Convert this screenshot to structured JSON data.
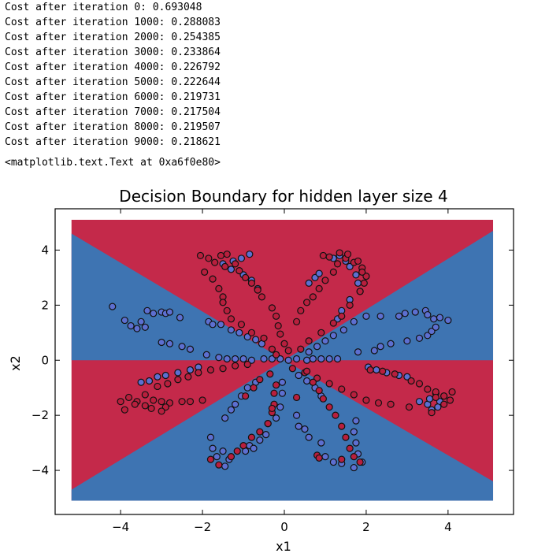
{
  "log_lines": [
    "Cost after iteration 0: 0.693048",
    "Cost after iteration 1000: 0.288083",
    "Cost after iteration 2000: 0.254385",
    "Cost after iteration 3000: 0.233864",
    "Cost after iteration 4000: 0.226792",
    "Cost after iteration 5000: 0.222644",
    "Cost after iteration 6000: 0.219731",
    "Cost after iteration 7000: 0.217504",
    "Cost after iteration 8000: 0.219507",
    "Cost after iteration 9000: 0.218621"
  ],
  "output_line": "<matplotlib.text.Text at 0xa6f0e80>",
  "chart_data": {
    "type": "scatter",
    "title": "Decision Boundary for hidden layer size 4",
    "xlabel": "x1",
    "ylabel": "x2",
    "xlim": [
      -5.6,
      5.6
    ],
    "ylim": [
      -5.6,
      5.5
    ],
    "xticks": [
      -4,
      -2,
      0,
      2,
      4
    ],
    "yticks": [
      -4,
      -2,
      0,
      2,
      4
    ],
    "x_tick_labels": [
      "−4",
      "−2",
      "0",
      "2",
      "4"
    ],
    "y_tick_labels": [
      "−4",
      "−2",
      "0",
      "2",
      "4"
    ],
    "grid": false,
    "background_regions": {
      "x_range": [
        -5.2,
        5.1
      ],
      "y_range": [
        -5.1,
        5.1
      ],
      "colors": {
        "red": "#c4294a",
        "blue": "#3e74b2"
      }
    },
    "colors": {
      "red_point": "#b81f3d",
      "blue_point": "#5d6fd0",
      "point_edge": "#111111"
    },
    "series": [
      {
        "color": "blue_point",
        "points": [
          [
            -4.2,
            1.95
          ],
          [
            -3.9,
            1.45
          ],
          [
            -3.75,
            1.25
          ],
          [
            -3.6,
            1.15
          ],
          [
            -3.5,
            1.4
          ],
          [
            -3.4,
            1.2
          ],
          [
            -3.35,
            1.8
          ],
          [
            -3.2,
            1.7
          ],
          [
            -3.0,
            1.75
          ],
          [
            -2.9,
            1.7
          ],
          [
            -2.8,
            1.75
          ],
          [
            -2.55,
            1.55
          ],
          [
            -3.0,
            0.65
          ],
          [
            -2.8,
            0.6
          ],
          [
            -2.5,
            0.5
          ],
          [
            -2.3,
            0.4
          ],
          [
            -1.85,
            1.4
          ],
          [
            -1.75,
            1.3
          ],
          [
            -1.55,
            1.3
          ],
          [
            -1.3,
            1.1
          ],
          [
            -1.1,
            1.0
          ],
          [
            -0.9,
            0.85
          ],
          [
            -0.7,
            0.75
          ],
          [
            -0.55,
            0.6
          ],
          [
            -1.9,
            0.2
          ],
          [
            -1.6,
            0.1
          ],
          [
            -1.4,
            0.05
          ],
          [
            -1.2,
            0.05
          ],
          [
            -1.0,
            0.05
          ],
          [
            -0.8,
            0.0
          ],
          [
            -0.5,
            0.05
          ],
          [
            -0.3,
            0.05
          ],
          [
            -0.1,
            0.05
          ],
          [
            0.1,
            0.0
          ],
          [
            0.3,
            0.05
          ],
          [
            0.55,
            0.0
          ],
          [
            0.7,
            0.05
          ],
          [
            0.9,
            0.05
          ],
          [
            1.1,
            0.05
          ],
          [
            1.3,
            0.05
          ],
          [
            0.6,
            0.3
          ],
          [
            0.8,
            0.5
          ],
          [
            1.0,
            0.7
          ],
          [
            1.2,
            0.9
          ],
          [
            1.45,
            1.1
          ],
          [
            1.7,
            1.4
          ],
          [
            2.0,
            1.6
          ],
          [
            2.35,
            1.6
          ],
          [
            1.8,
            0.3
          ],
          [
            2.2,
            0.35
          ],
          [
            2.35,
            0.5
          ],
          [
            2.6,
            0.6
          ],
          [
            2.8,
            1.6
          ],
          [
            2.95,
            1.7
          ],
          [
            3.2,
            1.75
          ],
          [
            3.45,
            1.8
          ],
          [
            3.5,
            1.65
          ],
          [
            3.65,
            1.5
          ],
          [
            3.8,
            1.55
          ],
          [
            4.0,
            1.45
          ],
          [
            3.0,
            0.7
          ],
          [
            3.3,
            0.8
          ],
          [
            3.5,
            0.9
          ],
          [
            3.6,
            1.05
          ],
          [
            3.7,
            1.2
          ],
          [
            -0.95,
            -3.3
          ],
          [
            -0.85,
            -3.1
          ],
          [
            -0.75,
            -3.2
          ],
          [
            -0.6,
            -2.9
          ],
          [
            -0.45,
            -2.7
          ],
          [
            -0.4,
            -2.3
          ],
          [
            -0.2,
            -2.1
          ],
          [
            -0.1,
            -1.7
          ],
          [
            -0.05,
            -1.2
          ],
          [
            -0.05,
            -0.8
          ],
          [
            -1.45,
            -3.85
          ],
          [
            -1.35,
            -3.6
          ],
          [
            -1.5,
            -3.3
          ],
          [
            -1.65,
            -3.5
          ],
          [
            -1.75,
            -3.2
          ],
          [
            -1.8,
            -2.8
          ],
          [
            -1.45,
            -2.1
          ],
          [
            -1.3,
            -1.8
          ],
          [
            -1.2,
            -1.6
          ],
          [
            -1.05,
            -1.3
          ],
          [
            -0.9,
            -1.0
          ],
          [
            -0.7,
            -0.8
          ],
          [
            0.3,
            -2.0
          ],
          [
            0.35,
            -2.4
          ],
          [
            0.5,
            -2.5
          ],
          [
            0.6,
            -2.8
          ],
          [
            0.9,
            -3.0
          ],
          [
            1.0,
            -3.5
          ],
          [
            1.2,
            -3.7
          ],
          [
            1.4,
            -3.75
          ],
          [
            1.7,
            -3.9
          ],
          [
            1.9,
            -3.7
          ],
          [
            1.8,
            -3.4
          ],
          [
            1.75,
            -3.0
          ],
          [
            1.7,
            -2.6
          ],
          [
            1.75,
            -2.2
          ],
          [
            0.9,
            -1.3
          ],
          [
            0.75,
            -1.0
          ],
          [
            0.55,
            -0.75
          ],
          [
            0.35,
            -0.55
          ],
          [
            -2.1,
            -0.25
          ],
          [
            -2.3,
            -0.35
          ],
          [
            -2.6,
            -0.45
          ],
          [
            -2.9,
            -0.55
          ],
          [
            -3.1,
            -0.6
          ],
          [
            -3.3,
            -0.75
          ],
          [
            -3.5,
            -0.8
          ],
          [
            2.05,
            -0.25
          ],
          [
            2.25,
            -0.35
          ],
          [
            2.5,
            -0.45
          ],
          [
            2.8,
            -0.55
          ],
          [
            3.0,
            -0.6
          ],
          [
            -0.85,
            3.85
          ],
          [
            -1.05,
            3.7
          ],
          [
            -1.25,
            3.6
          ],
          [
            -1.5,
            3.5
          ],
          [
            -1.3,
            3.3
          ],
          [
            -1.0,
            3.1
          ],
          [
            -0.8,
            2.9
          ],
          [
            -0.65,
            2.6
          ],
          [
            0.6,
            2.8
          ],
          [
            0.75,
            3.0
          ],
          [
            0.85,
            3.15
          ],
          [
            1.2,
            3.7
          ],
          [
            1.35,
            3.8
          ],
          [
            1.5,
            3.6
          ],
          [
            1.6,
            3.4
          ],
          [
            1.75,
            3.1
          ],
          [
            1.8,
            2.8
          ],
          [
            1.85,
            2.5
          ],
          [
            1.6,
            2.2
          ],
          [
            1.4,
            1.8
          ],
          [
            1.3,
            1.5
          ],
          [
            3.3,
            -1.5
          ],
          [
            3.5,
            -1.6
          ],
          [
            3.6,
            -1.8
          ],
          [
            3.7,
            -1.2
          ],
          [
            3.8,
            -1.5
          ],
          [
            3.9,
            -1.3
          ],
          [
            3.55,
            -1.4
          ],
          [
            3.75,
            -1.7
          ]
        ]
      },
      {
        "color": "red_point",
        "points": [
          [
            -2.05,
            3.8
          ],
          [
            -1.85,
            3.7
          ],
          [
            -1.7,
            3.55
          ],
          [
            -1.55,
            3.8
          ],
          [
            -1.4,
            3.85
          ],
          [
            -1.45,
            3.4
          ],
          [
            -1.2,
            3.5
          ],
          [
            -1.1,
            3.25
          ],
          [
            -0.95,
            3.0
          ],
          [
            -0.8,
            2.8
          ],
          [
            -0.65,
            2.55
          ],
          [
            -0.55,
            2.3
          ],
          [
            -1.95,
            3.2
          ],
          [
            -1.75,
            2.95
          ],
          [
            -1.6,
            2.6
          ],
          [
            -1.5,
            2.3
          ],
          [
            -1.5,
            2.1
          ],
          [
            -1.4,
            1.8
          ],
          [
            -1.3,
            1.5
          ],
          [
            -1.05,
            1.3
          ],
          [
            -0.8,
            1.0
          ],
          [
            -0.5,
            0.8
          ],
          [
            -0.3,
            0.4
          ],
          [
            -0.2,
            0.2
          ],
          [
            -0.3,
            1.9
          ],
          [
            -0.2,
            1.6
          ],
          [
            -0.15,
            1.25
          ],
          [
            -0.1,
            0.95
          ],
          [
            0.0,
            0.6
          ],
          [
            0.1,
            0.35
          ],
          [
            0.3,
            1.4
          ],
          [
            0.4,
            1.8
          ],
          [
            0.55,
            2.1
          ],
          [
            0.7,
            2.3
          ],
          [
            0.85,
            2.6
          ],
          [
            1.0,
            2.9
          ],
          [
            1.2,
            3.2
          ],
          [
            1.3,
            3.5
          ],
          [
            1.5,
            3.7
          ],
          [
            1.7,
            3.55
          ],
          [
            1.9,
            3.35
          ],
          [
            2.0,
            3.05
          ],
          [
            0.95,
            3.8
          ],
          [
            1.1,
            3.75
          ],
          [
            1.35,
            3.9
          ],
          [
            1.55,
            3.85
          ],
          [
            1.8,
            3.6
          ],
          [
            1.9,
            3.2
          ],
          [
            1.95,
            2.8
          ],
          [
            1.85,
            2.5
          ],
          [
            1.6,
            2.0
          ],
          [
            1.4,
            1.6
          ],
          [
            1.2,
            1.35
          ],
          [
            0.9,
            1.0
          ],
          [
            0.6,
            0.7
          ],
          [
            0.4,
            0.4
          ],
          [
            -4.0,
            -1.5
          ],
          [
            -3.8,
            -1.35
          ],
          [
            -3.6,
            -1.5
          ],
          [
            -3.4,
            -1.25
          ],
          [
            -3.2,
            -1.45
          ],
          [
            -3.0,
            -1.5
          ],
          [
            -2.8,
            -1.55
          ],
          [
            -2.5,
            -1.5
          ],
          [
            -2.3,
            -1.5
          ],
          [
            -2.0,
            -1.45
          ],
          [
            -3.9,
            -1.8
          ],
          [
            -3.65,
            -1.6
          ],
          [
            -3.4,
            -1.65
          ],
          [
            -3.1,
            -0.95
          ],
          [
            -2.85,
            -0.85
          ],
          [
            -2.6,
            -0.7
          ],
          [
            -2.35,
            -0.6
          ],
          [
            -2.1,
            -0.45
          ],
          [
            -1.8,
            -0.35
          ],
          [
            -1.5,
            -0.3
          ],
          [
            -1.2,
            -0.2
          ],
          [
            -0.9,
            -0.15
          ],
          [
            -2.9,
            -1.7
          ],
          [
            -3.0,
            -1.85
          ],
          [
            -3.25,
            -1.75
          ],
          [
            0.2,
            -0.3
          ],
          [
            0.5,
            -0.45
          ],
          [
            0.8,
            -0.65
          ],
          [
            1.1,
            -0.85
          ],
          [
            1.4,
            -1.05
          ],
          [
            1.7,
            -1.25
          ],
          [
            2.0,
            -1.45
          ],
          [
            2.3,
            -1.55
          ],
          [
            2.6,
            -1.6
          ],
          [
            2.1,
            -0.35
          ],
          [
            2.4,
            -0.4
          ],
          [
            2.7,
            -0.5
          ],
          [
            3.1,
            -0.75
          ],
          [
            3.3,
            -0.85
          ],
          [
            3.5,
            -1.05
          ],
          [
            3.7,
            -1.15
          ],
          [
            3.9,
            -1.3
          ],
          [
            4.1,
            -1.15
          ],
          [
            3.6,
            -1.9
          ],
          [
            3.9,
            -1.6
          ],
          [
            3.7,
            -1.35
          ],
          [
            3.05,
            -1.7
          ],
          [
            4.05,
            -1.45
          ],
          [
            -0.2,
            -0.9
          ],
          [
            -0.25,
            -1.2
          ],
          [
            -0.25,
            -1.6
          ],
          [
            -0.3,
            -1.9
          ],
          [
            -0.4,
            -2.3
          ],
          [
            -0.6,
            -2.6
          ],
          [
            -0.8,
            -2.8
          ],
          [
            -1.0,
            -3.1
          ],
          [
            -1.15,
            -3.3
          ],
          [
            -1.3,
            -3.5
          ],
          [
            -1.6,
            -3.8
          ],
          [
            -1.8,
            -3.6
          ],
          [
            -0.95,
            -1.3
          ],
          [
            -0.75,
            -1.0
          ],
          [
            -0.6,
            -0.7
          ],
          [
            -0.35,
            -0.5
          ],
          [
            0.55,
            -0.4
          ],
          [
            0.7,
            -0.8
          ],
          [
            0.85,
            -1.1
          ],
          [
            0.95,
            -1.4
          ],
          [
            1.1,
            -1.7
          ],
          [
            1.25,
            -2.0
          ],
          [
            1.4,
            -2.4
          ],
          [
            1.5,
            -2.8
          ],
          [
            1.6,
            -3.2
          ],
          [
            1.7,
            -3.5
          ],
          [
            1.85,
            -3.7
          ],
          [
            1.4,
            -3.6
          ],
          [
            0.8,
            -3.45
          ],
          [
            0.85,
            -3.55
          ],
          [
            -0.3,
            -1.75
          ],
          [
            0.3,
            -1.35
          ]
        ]
      }
    ]
  }
}
